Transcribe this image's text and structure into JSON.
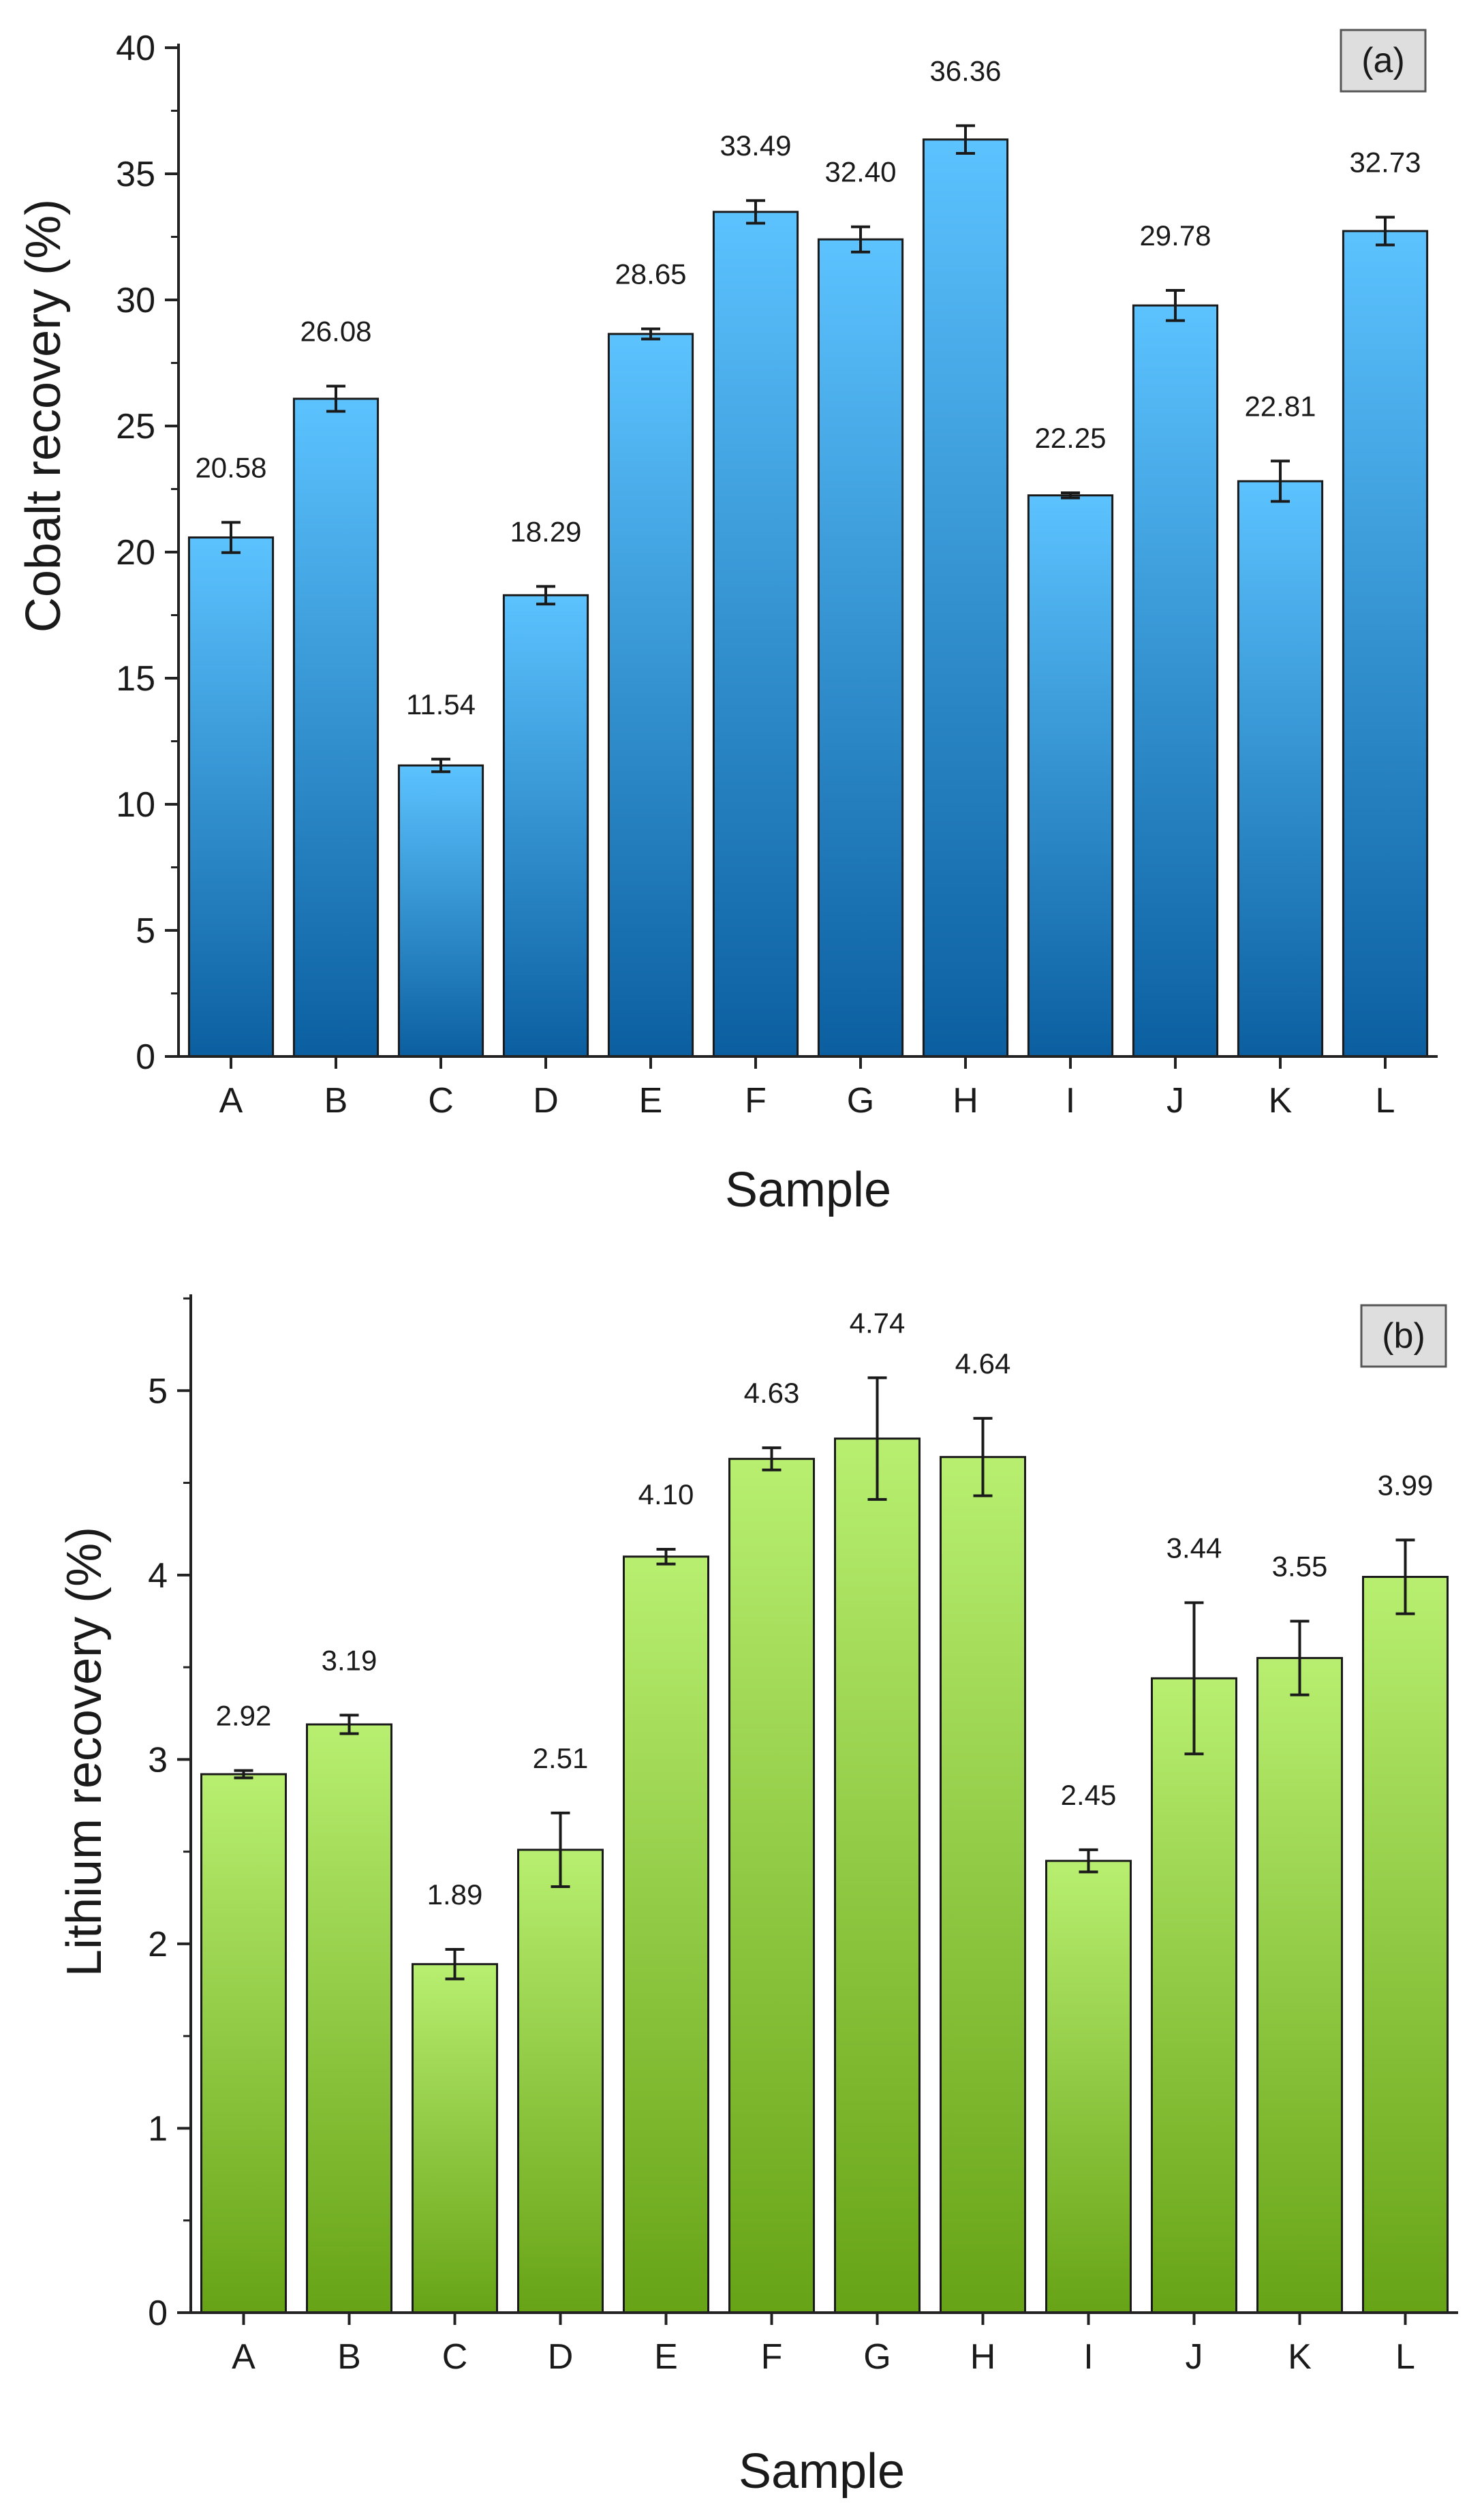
{
  "chart_data": [
    {
      "type": "bar",
      "panel_label": "(a)",
      "title": "",
      "xlabel": "Sample",
      "ylabel": "Cobalt recovery (%)",
      "categories": [
        "A",
        "B",
        "C",
        "D",
        "E",
        "F",
        "G",
        "H",
        "I",
        "J",
        "K",
        "L"
      ],
      "values": [
        20.58,
        26.08,
        11.54,
        18.29,
        28.65,
        33.49,
        32.4,
        36.36,
        22.25,
        29.78,
        22.81,
        32.73
      ],
      "value_labels": [
        "20.58",
        "26.08",
        "11.54",
        "18.29",
        "28.65",
        "33.49",
        "32.40",
        "36.36",
        "22.25",
        "29.78",
        "22.81",
        "32.73"
      ],
      "errors": [
        0.6,
        0.5,
        0.25,
        0.35,
        0.2,
        0.45,
        0.5,
        0.55,
        0.1,
        0.6,
        0.8,
        0.55
      ],
      "ylim": [
        0,
        40
      ],
      "yticks": [
        0,
        5,
        10,
        15,
        20,
        25,
        30,
        35,
        40
      ],
      "ytick_labels": [
        "0",
        "5",
        "10",
        "15",
        "20",
        "25",
        "30",
        "35",
        "40"
      ],
      "bar_color_top": "#5cc3ff",
      "bar_color_bottom": "#0b5fa0",
      "grid": false
    },
    {
      "type": "bar",
      "panel_label": "(b)",
      "title": "",
      "xlabel": "Sample",
      "ylabel": "Lithium recovery (%)",
      "categories": [
        "A",
        "B",
        "C",
        "D",
        "E",
        "F",
        "G",
        "H",
        "I",
        "J",
        "K",
        "L"
      ],
      "values": [
        2.92,
        3.19,
        1.89,
        2.51,
        4.1,
        4.63,
        4.74,
        4.64,
        2.45,
        3.44,
        3.55,
        3.99
      ],
      "value_labels": [
        "2.92",
        "3.19",
        "1.89",
        "2.51",
        "4.10",
        "4.63",
        "4.74",
        "4.64",
        "2.45",
        "3.44",
        "3.55",
        "3.99"
      ],
      "errors": [
        0.02,
        0.05,
        0.08,
        0.2,
        0.04,
        0.06,
        0.33,
        0.21,
        0.06,
        0.41,
        0.2,
        0.2
      ],
      "ylim": [
        0,
        5.5
      ],
      "yticks": [
        0,
        1,
        2,
        3,
        4,
        5
      ],
      "ytick_labels": [
        "0",
        "1",
        "2",
        "3",
        "4",
        "5"
      ],
      "bar_color_top": "#b8ef70",
      "bar_color_bottom": "#67a316",
      "grid": false
    }
  ]
}
